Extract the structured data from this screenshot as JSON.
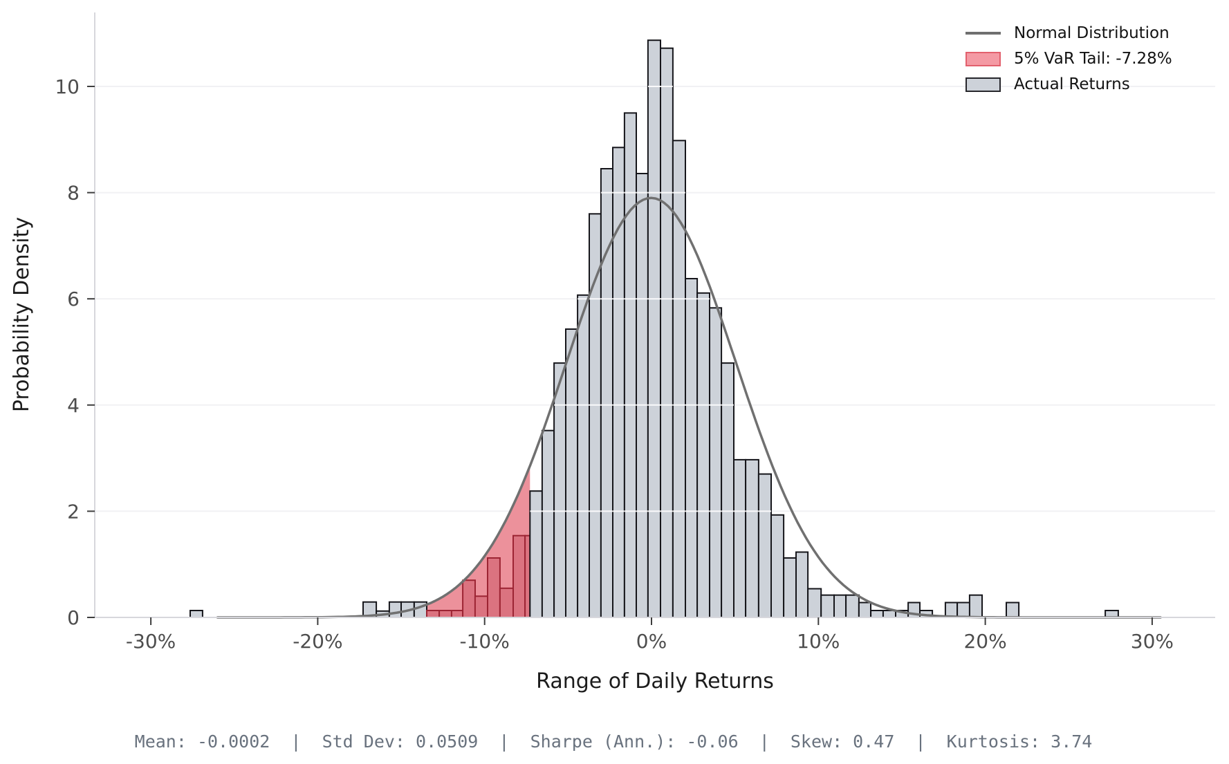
{
  "chart_data": {
    "type": "bar",
    "subtype": "histogram-with-density-curve",
    "title": "",
    "xlabel": "Range of Daily Returns",
    "ylabel": "Probability Density",
    "x_tick_labels": [
      "-30%",
      "-20%",
      "-10%",
      "0%",
      "10%",
      "20%",
      "30%"
    ],
    "x_tick_values": [
      -30,
      -20,
      -10,
      0,
      10,
      20,
      30
    ],
    "y_tick_labels": [
      "0",
      "2",
      "4",
      "6",
      "8",
      "10"
    ],
    "y_tick_values": [
      0,
      2,
      4,
      6,
      8,
      10
    ],
    "xlim": [
      -33.4,
      33.8
    ],
    "ylim": [
      0,
      11.4
    ],
    "grid": "horizontal",
    "legend": {
      "position": "upper-right",
      "entries": [
        {
          "label": "Normal Distribution",
          "type": "line",
          "color": "#6f6f6f"
        },
        {
          "label": "5% VaR Tail: -7.28%",
          "type": "patch",
          "fill": "#f49aa4",
          "edge": "#e2606d"
        },
        {
          "label": "Actual Returns",
          "type": "patch",
          "fill": "#cdd2d9",
          "edge": "#26262b"
        }
      ]
    },
    "normal_curve": {
      "mu": -0.02,
      "sigma": 5.09,
      "peak_density": 7.9,
      "x_min": -26.0,
      "x_max": 30.7
    },
    "var_threshold_pct": -7.28,
    "bars_units": {
      "x": "daily return, percent",
      "h": "probability density"
    },
    "bars": [
      {
        "x0": -27.64,
        "x1": -26.9,
        "h": 0.13,
        "tail": false
      },
      {
        "x0": -17.28,
        "x1": -16.49,
        "h": 0.29,
        "tail": false
      },
      {
        "x0": -16.49,
        "x1": -15.71,
        "h": 0.12,
        "tail": false
      },
      {
        "x0": -15.71,
        "x1": -15.0,
        "h": 0.29,
        "tail": false
      },
      {
        "x0": -15.0,
        "x1": -14.22,
        "h": 0.29,
        "tail": false
      },
      {
        "x0": -14.22,
        "x1": -13.47,
        "h": 0.29,
        "tail": false
      },
      {
        "x0": -13.47,
        "x1": -12.72,
        "h": 0.13,
        "tail": true
      },
      {
        "x0": -12.72,
        "x1": -11.98,
        "h": 0.13,
        "tail": true
      },
      {
        "x0": -11.98,
        "x1": -11.31,
        "h": 0.13,
        "tail": true
      },
      {
        "x0": -11.31,
        "x1": -10.57,
        "h": 0.7,
        "tail": true
      },
      {
        "x0": -10.57,
        "x1": -9.82,
        "h": 0.4,
        "tail": true
      },
      {
        "x0": -9.82,
        "x1": -9.08,
        "h": 1.12,
        "tail": true
      },
      {
        "x0": -9.08,
        "x1": -8.29,
        "h": 0.55,
        "tail": true
      },
      {
        "x0": -8.29,
        "x1": -7.58,
        "h": 1.54,
        "tail": true
      },
      {
        "x0": -7.58,
        "x1": -7.28,
        "h": 1.54,
        "tail": true
      },
      {
        "x0": -7.28,
        "x1": -6.55,
        "h": 2.38,
        "tail": false
      },
      {
        "x0": -6.55,
        "x1": -5.84,
        "h": 3.52,
        "tail": false
      },
      {
        "x0": -5.84,
        "x1": -5.14,
        "h": 4.79,
        "tail": false
      },
      {
        "x0": -5.14,
        "x1": -4.43,
        "h": 5.43,
        "tail": false
      },
      {
        "x0": -4.43,
        "x1": -3.73,
        "h": 6.07,
        "tail": false
      },
      {
        "x0": -3.73,
        "x1": -3.03,
        "h": 7.6,
        "tail": false
      },
      {
        "x0": -3.03,
        "x1": -2.32,
        "h": 8.45,
        "tail": false
      },
      {
        "x0": -2.32,
        "x1": -1.62,
        "h": 8.85,
        "tail": false
      },
      {
        "x0": -1.62,
        "x1": -0.91,
        "h": 9.5,
        "tail": false
      },
      {
        "x0": -0.91,
        "x1": -0.21,
        "h": 8.36,
        "tail": false
      },
      {
        "x0": -0.21,
        "x1": 0.54,
        "h": 10.87,
        "tail": false
      },
      {
        "x0": 0.54,
        "x1": 1.28,
        "h": 10.72,
        "tail": false
      },
      {
        "x0": 1.28,
        "x1": 2.03,
        "h": 8.98,
        "tail": false
      },
      {
        "x0": 2.03,
        "x1": 2.74,
        "h": 6.38,
        "tail": false
      },
      {
        "x0": 2.74,
        "x1": 3.48,
        "h": 6.11,
        "tail": false
      },
      {
        "x0": 3.48,
        "x1": 4.19,
        "h": 5.83,
        "tail": false
      },
      {
        "x0": 4.19,
        "x1": 4.93,
        "h": 4.79,
        "tail": false
      },
      {
        "x0": 4.93,
        "x1": 5.64,
        "h": 2.97,
        "tail": false
      },
      {
        "x0": 5.64,
        "x1": 6.42,
        "h": 2.97,
        "tail": false
      },
      {
        "x0": 6.42,
        "x1": 7.17,
        "h": 2.7,
        "tail": false
      },
      {
        "x0": 7.17,
        "x1": 7.92,
        "h": 1.93,
        "tail": false
      },
      {
        "x0": 7.92,
        "x1": 8.66,
        "h": 1.12,
        "tail": false
      },
      {
        "x0": 8.66,
        "x1": 9.37,
        "h": 1.23,
        "tail": false
      },
      {
        "x0": 9.37,
        "x1": 10.16,
        "h": 0.54,
        "tail": false
      },
      {
        "x0": 10.16,
        "x1": 10.94,
        "h": 0.42,
        "tail": false
      },
      {
        "x0": 10.94,
        "x1": 11.65,
        "h": 0.42,
        "tail": false
      },
      {
        "x0": 11.65,
        "x1": 12.43,
        "h": 0.42,
        "tail": false
      },
      {
        "x0": 12.43,
        "x1": 13.14,
        "h": 0.28,
        "tail": false
      },
      {
        "x0": 13.14,
        "x1": 13.88,
        "h": 0.13,
        "tail": false
      },
      {
        "x0": 13.88,
        "x1": 14.63,
        "h": 0.13,
        "tail": false
      },
      {
        "x0": 14.63,
        "x1": 15.38,
        "h": 0.13,
        "tail": false
      },
      {
        "x0": 15.38,
        "x1": 16.08,
        "h": 0.28,
        "tail": false
      },
      {
        "x0": 16.08,
        "x1": 16.83,
        "h": 0.13,
        "tail": false
      },
      {
        "x0": 17.61,
        "x1": 18.32,
        "h": 0.28,
        "tail": false
      },
      {
        "x0": 18.32,
        "x1": 19.06,
        "h": 0.28,
        "tail": false
      },
      {
        "x0": 19.06,
        "x1": 19.81,
        "h": 0.42,
        "tail": false
      },
      {
        "x0": 21.26,
        "x1": 22.01,
        "h": 0.28,
        "tail": false
      },
      {
        "x0": 27.19,
        "x1": 27.97,
        "h": 0.13,
        "tail": false
      }
    ],
    "colors": {
      "hist_fill": "#cdd2d9",
      "hist_edge": "#15151a",
      "var_bar_fill": "#db7380",
      "var_bar_edge": "#9c2433",
      "var_area_fill": "#ec919b",
      "curve": "#707070",
      "spine": "#d7d7dc",
      "grid_under": "#f1f1f4",
      "grid_over": "#ffffff",
      "tick_mark": "#3d3d3d",
      "tick_label": "#4d4d4d"
    },
    "stats_line": "Mean: -0.0002  |  Std Dev: 0.0509  |  Sharpe (Ann.): -0.06  |  Skew: 0.47  |  Kurtosis: 3.74",
    "stats": {
      "mean": "-0.0002",
      "std_dev": "0.0509",
      "sharpe_ann": "-0.06",
      "skew": "0.47",
      "kurtosis": "3.74"
    }
  }
}
